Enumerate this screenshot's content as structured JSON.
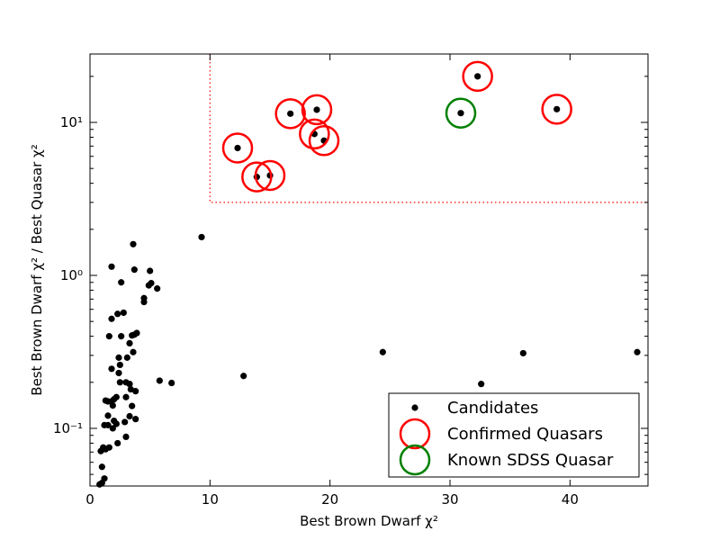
{
  "chart_data": {
    "type": "scatter",
    "xlabel": "Best Brown Dwarf χ²",
    "ylabel": "Best Brown Dwarf χ² / Best Quasar χ²",
    "xscale": "linear",
    "yscale": "log",
    "xlim": [
      0,
      46.5
    ],
    "ylim": [
      0.042,
      28
    ],
    "x_ticks": [
      0,
      10,
      20,
      30,
      40
    ],
    "x_tick_labels": [
      "0",
      "10",
      "20",
      "30",
      "40"
    ],
    "y_ticks": [
      0.1,
      1,
      10
    ],
    "y_tick_labels": [
      "10⁻¹",
      "10⁰",
      "10¹"
    ],
    "grid": false,
    "legend_position": "lower-right",
    "region_box": {
      "x_min": 10,
      "y_min": 3,
      "color": "#ff0000",
      "style": "dotted"
    },
    "series": [
      {
        "name": "Candidates",
        "marker": "filled-circle",
        "color": "#000000",
        "points": [
          [
            0.8,
            0.043
          ],
          [
            1.0,
            0.044
          ],
          [
            1.2,
            0.047
          ],
          [
            1.0,
            0.056
          ],
          [
            0.9,
            0.071
          ],
          [
            1.1,
            0.075
          ],
          [
            1.3,
            0.073
          ],
          [
            1.6,
            0.075
          ],
          [
            2.3,
            0.08
          ],
          [
            3.0,
            0.088
          ],
          [
            1.2,
            0.105
          ],
          [
            1.5,
            0.105
          ],
          [
            1.9,
            0.1
          ],
          [
            2.2,
            0.107
          ],
          [
            2.0,
            0.112
          ],
          [
            2.9,
            0.11
          ],
          [
            3.3,
            0.12
          ],
          [
            3.8,
            0.115
          ],
          [
            1.5,
            0.121
          ],
          [
            1.9,
            0.141
          ],
          [
            1.8,
            0.15
          ],
          [
            1.3,
            0.152
          ],
          [
            1.5,
            0.15
          ],
          [
            2.2,
            0.16
          ],
          [
            3.0,
            0.16
          ],
          [
            3.5,
            0.14
          ],
          [
            2.0,
            0.155
          ],
          [
            3.4,
            0.18
          ],
          [
            3.8,
            0.175
          ],
          [
            2.5,
            0.2
          ],
          [
            3.0,
            0.2
          ],
          [
            3.3,
            0.195
          ],
          [
            5.8,
            0.205
          ],
          [
            6.8,
            0.198
          ],
          [
            2.4,
            0.23
          ],
          [
            2.5,
            0.26
          ],
          [
            2.4,
            0.29
          ],
          [
            1.8,
            0.245
          ],
          [
            3.1,
            0.29
          ],
          [
            3.6,
            0.315
          ],
          [
            3.3,
            0.36
          ],
          [
            3.5,
            0.405
          ],
          [
            3.7,
            0.41
          ],
          [
            3.9,
            0.42
          ],
          [
            2.6,
            0.4
          ],
          [
            1.6,
            0.4
          ],
          [
            1.8,
            0.52
          ],
          [
            2.3,
            0.56
          ],
          [
            2.8,
            0.57
          ],
          [
            4.5,
            0.67
          ],
          [
            4.5,
            0.71
          ],
          [
            4.9,
            0.86
          ],
          [
            5.1,
            0.89
          ],
          [
            5.6,
            0.82
          ],
          [
            2.6,
            0.9
          ],
          [
            5.0,
            1.07
          ],
          [
            3.7,
            1.09
          ],
          [
            1.8,
            1.14
          ],
          [
            3.6,
            1.6
          ],
          [
            9.3,
            1.78
          ],
          [
            12.8,
            0.22
          ],
          [
            24.4,
            0.315
          ],
          [
            32.6,
            0.195
          ],
          [
            36.1,
            0.31
          ],
          [
            45.6,
            0.315
          ],
          [
            12.3,
            6.8
          ],
          [
            13.9,
            4.4
          ],
          [
            15.0,
            4.5
          ],
          [
            16.7,
            11.4
          ],
          [
            18.7,
            8.4
          ],
          [
            18.9,
            12.1
          ],
          [
            19.5,
            7.6
          ],
          [
            30.9,
            11.5
          ],
          [
            32.3,
            20.0
          ],
          [
            38.9,
            12.2
          ]
        ]
      },
      {
        "name": "Confirmed Quasars",
        "marker": "open-circle",
        "color": "#ff0000",
        "points": [
          [
            12.3,
            6.8
          ],
          [
            13.9,
            4.4
          ],
          [
            15.0,
            4.5
          ],
          [
            16.7,
            11.4
          ],
          [
            18.7,
            8.4
          ],
          [
            18.9,
            12.1
          ],
          [
            19.5,
            7.6
          ],
          [
            32.3,
            20.0
          ],
          [
            38.9,
            12.2
          ]
        ]
      },
      {
        "name": "Known SDSS Quasar",
        "marker": "open-circle",
        "color": "#008000",
        "points": [
          [
            30.9,
            11.5
          ]
        ]
      }
    ]
  }
}
